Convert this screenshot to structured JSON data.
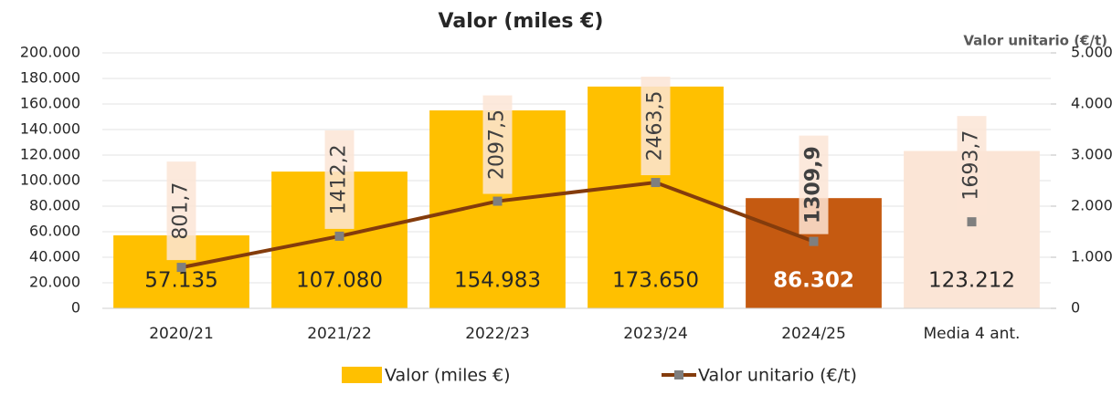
{
  "chart_data": {
    "type": "bar+line",
    "title": "Valor (miles €)",
    "y2_label": "Valor unitario (€/t)",
    "categories": [
      "2020/21",
      "2021/22",
      "2022/23",
      "2023/24",
      "2024/25",
      "Media 4 ant."
    ],
    "ylim": [
      0,
      200000
    ],
    "yticks": [
      0,
      {
        "value": 20000,
        "label": "20.000"
      },
      {
        "value": 40000,
        "label": "40.000"
      },
      {
        "value": 60000,
        "label": "60.000"
      },
      {
        "value": 80000,
        "label": "80.000"
      },
      {
        "value": 100000,
        "label": "100.000"
      },
      {
        "value": 120000,
        "label": "120.000"
      },
      {
        "value": 140000,
        "label": "140.000"
      },
      {
        "value": 160000,
        "label": "160.000"
      },
      {
        "value": 180000,
        "label": "180.000"
      },
      {
        "value": 200000,
        "label": "200.000"
      }
    ],
    "y2lim": [
      0,
      5000
    ],
    "y2ticks": [
      0,
      {
        "value": 1000,
        "label": "1.000"
      },
      {
        "value": 2000,
        "label": "2.000"
      },
      {
        "value": 3000,
        "label": "3.000"
      },
      {
        "value": 4000,
        "label": "4.000"
      },
      {
        "value": 5000,
        "label": "5.000"
      }
    ],
    "grid": true,
    "legend": "bottom",
    "series": [
      {
        "name": "Valor (miles €)",
        "type": "bar",
        "color": "#FFC000",
        "colors": [
          "#FFC000",
          "#FFC000",
          "#FFC000",
          "#FFC000",
          "#C55A11",
          "#FBE5D6"
        ],
        "values": [
          57135,
          107080,
          154983,
          173650,
          86302,
          123212
        ],
        "value_labels": [
          "57.135",
          "107.080",
          "154.983",
          "173.650",
          "86.302",
          "123.212"
        ]
      },
      {
        "name": "Valor unitario (€/t)",
        "type": "line",
        "axis": "y2",
        "color": "#843C0C",
        "marker_color": "#7F7F7F",
        "values": [
          801.7,
          1412.2,
          2097.5,
          2463.5,
          1309.9,
          1693.7
        ],
        "value_labels": [
          "801,7",
          "1412,2",
          "2097,5",
          "2463,5",
          "1309,9",
          "1693,7"
        ]
      }
    ]
  }
}
